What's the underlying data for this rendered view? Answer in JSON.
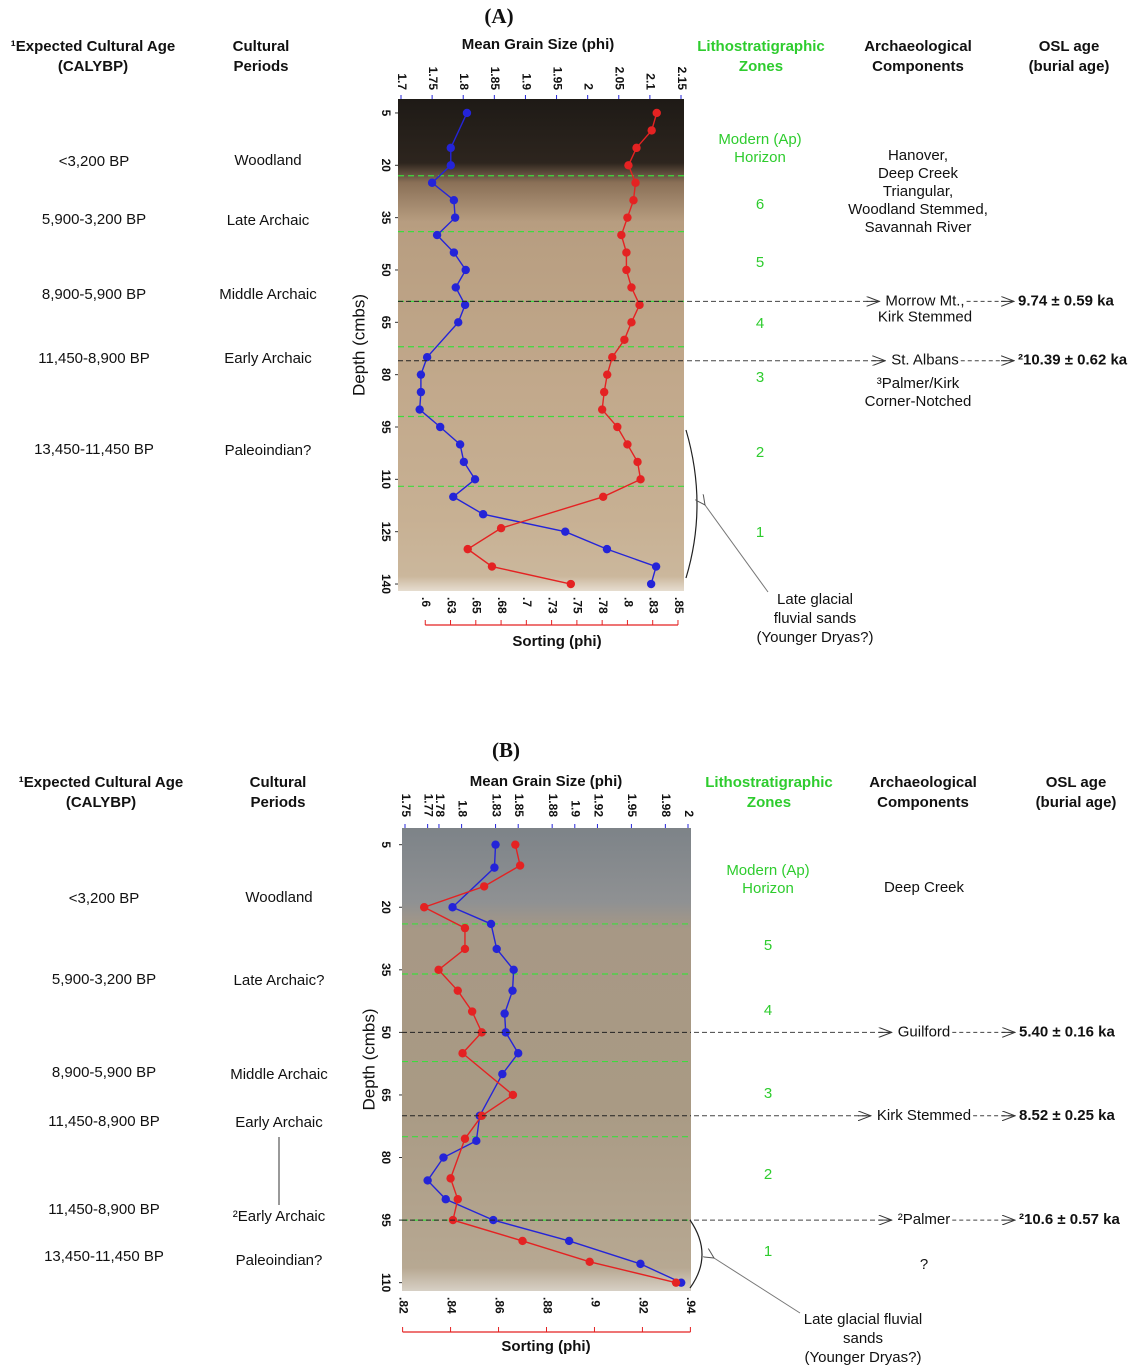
{
  "chart_data": [
    {
      "type": "line",
      "title": "(A)",
      "ylabel": "Depth (cmbs)",
      "ylim": [
        1,
        142
      ],
      "yticks": [
        5,
        20,
        35,
        50,
        65,
        80,
        95,
        110,
        125,
        140
      ],
      "xlim": [
        1.7,
        2.15
      ],
      "xticks": [
        1.7,
        1.75,
        1.8,
        1.85,
        1.9,
        1.95,
        2,
        2.05,
        2.1,
        2.15
      ],
      "x2lim": [
        0.576,
        0.853
      ],
      "x2ticks": [
        {
          "value": 0.6,
          "label": ".6"
        },
        {
          "value": 0.625,
          "label": ".63"
        },
        {
          "value": 0.65,
          "label": ".65"
        },
        {
          "value": 0.675,
          "label": ".68"
        },
        {
          "value": 0.7,
          "label": ".7"
        },
        {
          "value": 0.725,
          "label": ".73"
        },
        {
          "value": 0.75,
          "label": ".75"
        },
        {
          "value": 0.775,
          "label": ".78"
        },
        {
          "value": 0.8,
          "label": ".8"
        },
        {
          "value": 0.825,
          "label": ".83"
        },
        {
          "value": 0.85,
          "label": ".85"
        }
      ],
      "series": [
        {
          "name": "Mean Grain Size (phi)",
          "color": "#2424d8",
          "axis": "x",
          "depth": [
            5,
            15,
            20,
            25,
            30,
            35,
            40,
            45,
            50,
            55,
            60,
            65,
            75,
            80,
            85,
            90,
            95,
            100,
            105,
            110,
            115,
            120,
            125,
            130,
            135,
            140
          ],
          "values": [
            1.806,
            1.78,
            1.78,
            1.75,
            1.785,
            1.787,
            1.758,
            1.785,
            1.804,
            1.788,
            1.803,
            1.792,
            1.742,
            1.732,
            1.732,
            1.73,
            1.763,
            1.795,
            1.801,
            1.819,
            1.784,
            1.832,
            1.964,
            2.031,
            2.11,
            2.102
          ]
        },
        {
          "name": "Sorting (phi)",
          "color": "#e42222",
          "axis": "x2",
          "depth": [
            5,
            10,
            15,
            20,
            25,
            30,
            35,
            40,
            45,
            50,
            55,
            60,
            65,
            70,
            75,
            80,
            85,
            90,
            95,
            100,
            105,
            110,
            115,
            124,
            130,
            135,
            140
          ],
          "values": [
            0.829,
            0.824,
            0.809,
            0.801,
            0.808,
            0.806,
            0.8,
            0.794,
            0.799,
            0.799,
            0.804,
            0.812,
            0.804,
            0.797,
            0.785,
            0.78,
            0.777,
            0.775,
            0.79,
            0.8,
            0.81,
            0.813,
            0.776,
            0.675,
            0.642,
            0.666,
            0.744
          ]
        }
      ],
      "headers": [
        [
          "¹Expected Cultural Age",
          "(CALYBP)"
        ],
        [
          "Cultural",
          "Periods"
        ],
        [
          "Lithostratigraphic",
          "Zones"
        ],
        [
          "Archaeological",
          "Components"
        ],
        [
          "OSL age",
          "(burial age)"
        ]
      ],
      "cultural_ages": [
        "<3,200 BP",
        "5,900-3,200 BP",
        "8,900-5,900 BP",
        "11,450-8,900 BP",
        "13,450-11,450 BP"
      ],
      "cultural_periods": [
        "Woodland",
        "Late Archaic",
        "Middle Archaic",
        "Early Archaic",
        "Paleoindian?"
      ],
      "zones": [
        [
          "Modern (Ap)",
          "Horizon"
        ],
        [
          "6"
        ],
        [
          "5"
        ],
        [
          "4"
        ],
        [
          "3"
        ],
        [
          "2"
        ],
        [
          "1"
        ]
      ],
      "zone_boundaries": [
        23,
        39,
        59,
        72,
        92,
        112
      ],
      "components": [
        [
          "Hanover,",
          "Deep Creek",
          "Triangular,",
          "Woodland Stemmed,",
          "Savannah River"
        ],
        [
          "³Palmer/Kirk",
          "Corner-Notched"
        ]
      ],
      "osl": [
        {
          "depth": 59,
          "component": [
            "Morrow Mt.,",
            "Kirk Stemmed"
          ],
          "age": "9.74 ± 0.59 ka"
        },
        {
          "depth": 76,
          "component": [
            "St. Albans"
          ],
          "age": "²10.39 ± 0.62 ka"
        }
      ],
      "note": [
        "Late glacial",
        "fluvial sands",
        "(Younger Dryas?)"
      ]
    },
    {
      "type": "line",
      "title": "(B)",
      "ylabel": "Depth (cmbs)",
      "ylim": [
        1,
        112
      ],
      "yticks": [
        5,
        20,
        35,
        50,
        65,
        80,
        95,
        110
      ],
      "xlim": [
        1.75,
        2
      ],
      "xticks": [
        1.75,
        1.77,
        1.78,
        1.8,
        1.83,
        1.85,
        1.88,
        1.9,
        1.92,
        1.95,
        1.98,
        2
      ],
      "x2lim": [
        0.821,
        0.939
      ],
      "x2ticks": [
        {
          "value": 0.82,
          "label": ".82"
        },
        {
          "value": 0.84,
          "label": ".84"
        },
        {
          "value": 0.86,
          "label": ".86"
        },
        {
          "value": 0.88,
          "label": ".88"
        },
        {
          "value": 0.9,
          "label": ".9"
        },
        {
          "value": 0.92,
          "label": ".92"
        },
        {
          "value": 0.94,
          "label": ".94"
        }
      ],
      "series": [
        {
          "name": "Mean Grain Size (phi)",
          "color": "#2424d8",
          "axis": "x",
          "depth": [
            5,
            10.5,
            20,
            24,
            30,
            35,
            40,
            45.5,
            50,
            55,
            60,
            70,
            76,
            80,
            85.5,
            90,
            95,
            100,
            105.5,
            110
          ],
          "values": [
            1.83,
            1.829,
            1.792,
            1.826,
            1.831,
            1.846,
            1.845,
            1.838,
            1.839,
            1.85,
            1.836,
            1.816,
            1.813,
            1.784,
            1.77,
            1.786,
            1.828,
            1.895,
            1.958,
            1.994
          ]
        },
        {
          "name": "Sorting (phi)",
          "color": "#e42222",
          "axis": "x2",
          "depth": [
            5,
            10,
            15,
            20,
            25,
            30,
            35,
            40,
            45,
            50,
            55,
            65,
            70,
            75.5,
            85,
            90,
            95,
            100,
            105,
            110
          ],
          "values": [
            0.867,
            0.869,
            0.854,
            0.829,
            0.846,
            0.846,
            0.835,
            0.843,
            0.849,
            0.853,
            0.845,
            0.866,
            0.853,
            0.846,
            0.84,
            0.843,
            0.841,
            0.87,
            0.898,
            0.934
          ]
        }
      ],
      "headers": [
        [
          "¹Expected Cultural Age",
          "(CALYBP)"
        ],
        [
          "Cultural",
          "Periods"
        ],
        [
          "Lithostratigraphic",
          "Zones"
        ],
        [
          "Archaeological",
          "Components"
        ],
        [
          "OSL age",
          "(burial age)"
        ]
      ],
      "cultural_ages": [
        "<3,200 BP",
        "5,900-3,200 BP",
        "8,900-5,900 BP",
        "11,450-8,900 BP",
        "11,450-8,900 BP",
        "13,450-11,450 BP"
      ],
      "cultural_periods": [
        "Woodland",
        "Late Archaic?",
        "Middle Archaic",
        "Early Archaic",
        "²Early Archaic",
        "Paleoindian?"
      ],
      "zones": [
        [
          "Modern (Ap)",
          "Horizon"
        ],
        [
          "5"
        ],
        [
          "4"
        ],
        [
          "3"
        ],
        [
          "2"
        ],
        [
          "1"
        ]
      ],
      "zone_boundaries": [
        24,
        36,
        57,
        75,
        95
      ],
      "components": [
        [
          "Deep Creek"
        ],
        [
          "?"
        ]
      ],
      "osl": [
        {
          "depth": 50,
          "component": [
            "Guilford"
          ],
          "age": "5.40 ± 0.16 ka"
        },
        {
          "depth": 70,
          "component": [
            "Kirk Stemmed"
          ],
          "age": "8.52 ± 0.25 ka"
        },
        {
          "depth": 95,
          "component": [
            "²Palmer"
          ],
          "age": "²10.6 ± 0.57 ka"
        }
      ],
      "note": [
        "Late glacial fluvial",
        "sands",
        "(Younger Dryas?)"
      ]
    }
  ]
}
